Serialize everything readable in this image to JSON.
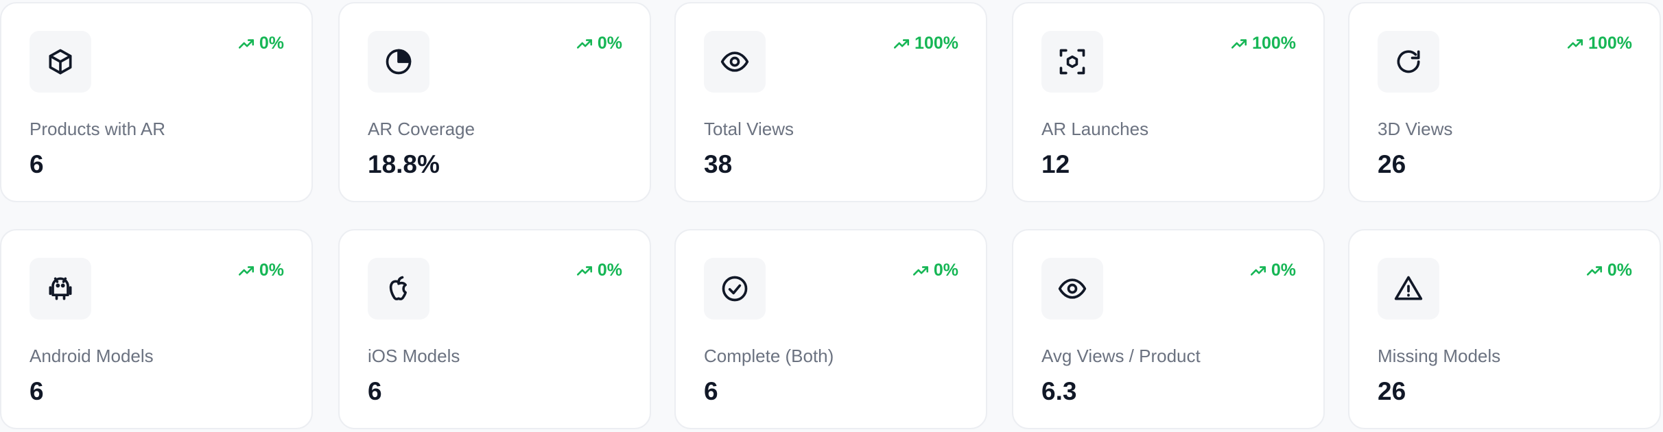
{
  "cards": [
    {
      "label": "Products with AR",
      "value": "6",
      "trend": "0%"
    },
    {
      "label": "AR Coverage",
      "value": "18.8%",
      "trend": "0%"
    },
    {
      "label": "Total Views",
      "value": "38",
      "trend": "100%"
    },
    {
      "label": "AR Launches",
      "value": "12",
      "trend": "100%"
    },
    {
      "label": "3D Views",
      "value": "26",
      "trend": "100%"
    },
    {
      "label": "Android Models",
      "value": "6",
      "trend": "0%"
    },
    {
      "label": "iOS Models",
      "value": "6",
      "trend": "0%"
    },
    {
      "label": "Complete (Both)",
      "value": "6",
      "trend": "0%"
    },
    {
      "label": "Avg Views / Product",
      "value": "6.3",
      "trend": "0%"
    },
    {
      "label": "Missing Models",
      "value": "26",
      "trend": "0%"
    }
  ]
}
